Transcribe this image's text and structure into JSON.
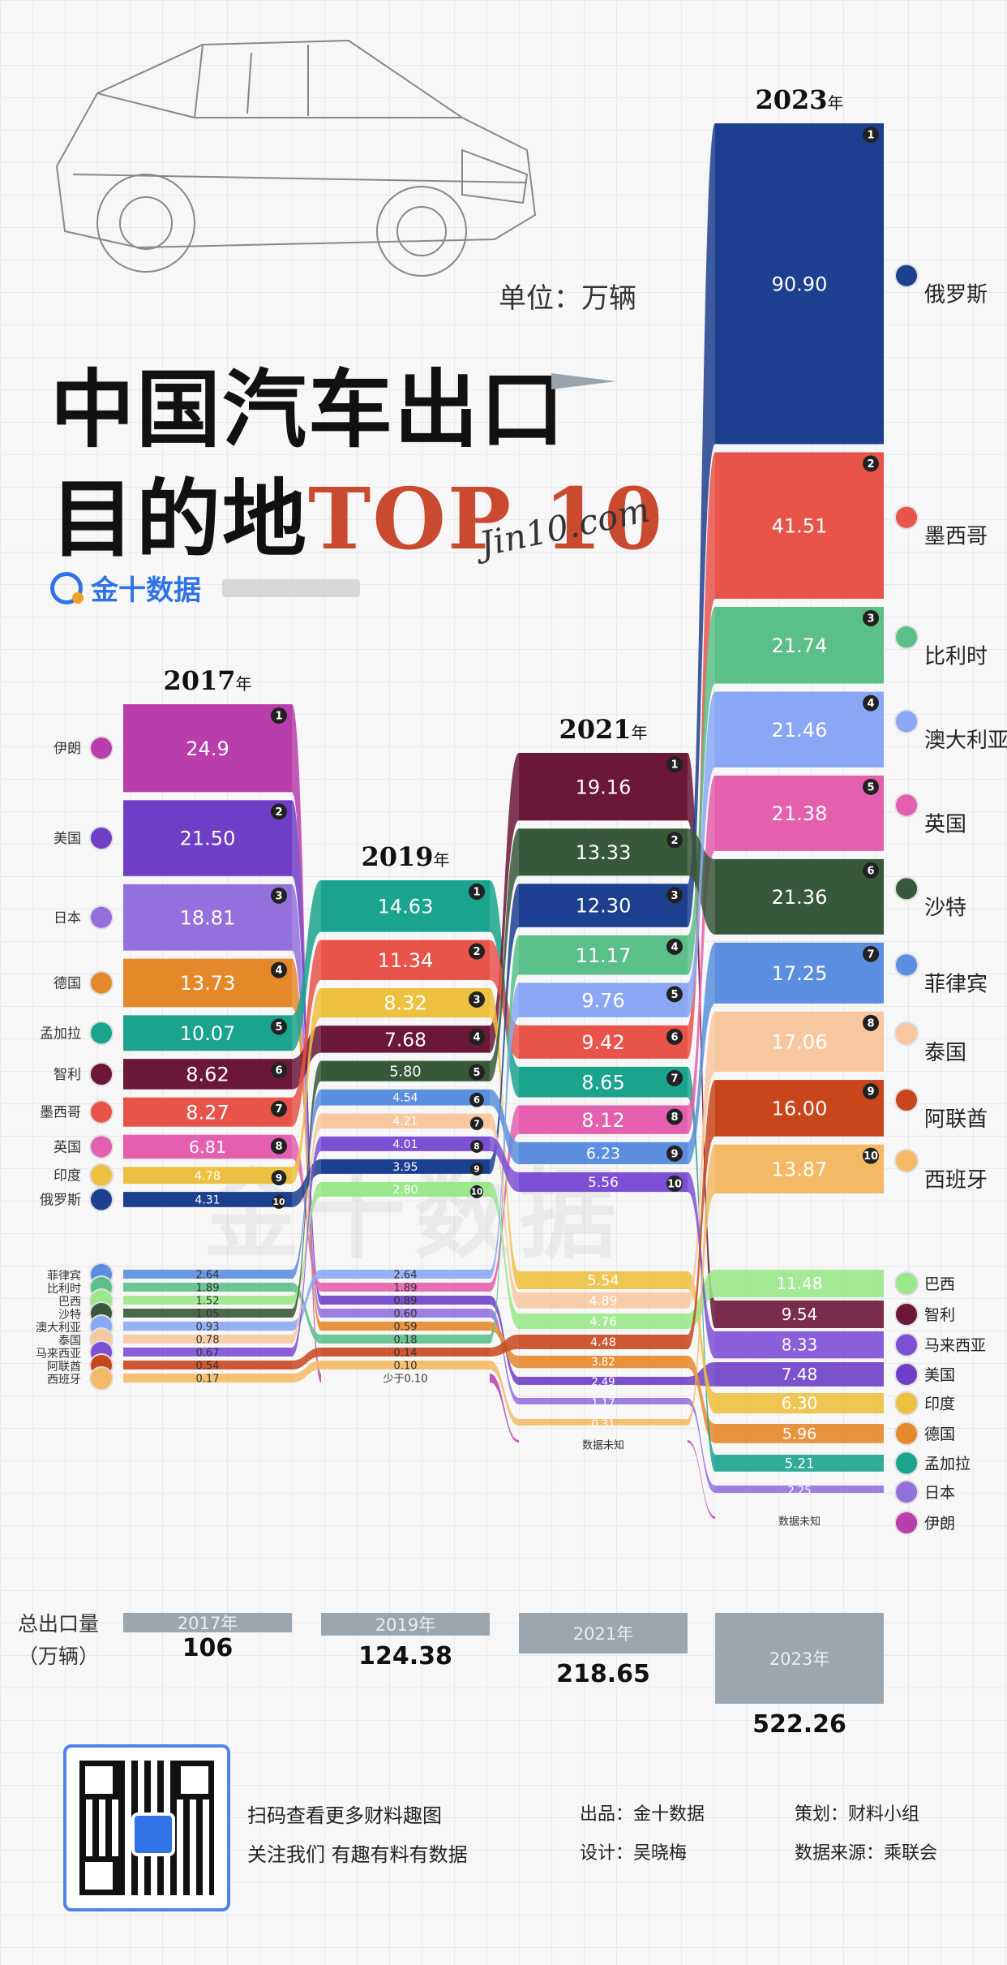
{
  "header": {
    "unit": "单位：万辆",
    "title_line1": "中国汽车出口",
    "title_line2_prefix": "目的地",
    "title_line2_accent": "TOP 10",
    "brand": "金十数据",
    "signature": "Jin10.com"
  },
  "watermark": "金十数据",
  "totals": {
    "label_line1": "总出口量",
    "label_line2": "（万辆）",
    "items": [
      {
        "year": "2017年",
        "value": "106"
      },
      {
        "year": "2019年",
        "value": "124.38"
      },
      {
        "year": "2021年",
        "value": "218.65"
      },
      {
        "year": "2023年",
        "value": "522.26"
      }
    ]
  },
  "footer": {
    "qr_line1": "扫码查看更多财料趣图",
    "qr_line2": "关注我们 有趣有料有数据",
    "producer": "出品：金十数据",
    "designer": "设计：吴晓梅",
    "planner": "策划：财料小组",
    "source": "数据来源：乘联会"
  },
  "country_colors": {
    "伊朗": "#b93dab",
    "美国": "#6e3fc6",
    "日本": "#9470dd",
    "德国": "#e5882a",
    "孟加拉": "#1aa38d",
    "智利": "#6b1737",
    "墨西哥": "#e8534a",
    "英国": "#e45fae",
    "印度": "#eec040",
    "俄罗斯": "#1d3f8f",
    "菲律宾": "#5b8ede",
    "比利时": "#5bbf88",
    "巴西": "#9ae88a",
    "沙特": "#38583a",
    "澳大利亚": "#8aa7f5",
    "泰国": "#f7c8a0",
    "马来西亚": "#7c4fd5",
    "阿联酋": "#c9461d",
    "西班牙": "#f3b964"
  },
  "chart_data": {
    "type": "bar",
    "title": "中国汽车出口目的地TOP 10",
    "unit": "万辆",
    "years": [
      {
        "year": "2017",
        "year_suffix": "年",
        "top10": [
          {
            "rank": "1",
            "country": "伊朗",
            "value": 24.9,
            "label": "24.9"
          },
          {
            "rank": "2",
            "country": "美国",
            "value": 21.5,
            "label": "21.50"
          },
          {
            "rank": "3",
            "country": "日本",
            "value": 18.81,
            "label": "18.81"
          },
          {
            "rank": "4",
            "country": "德国",
            "value": 13.73,
            "label": "13.73"
          },
          {
            "rank": "5",
            "country": "孟加拉",
            "value": 10.07,
            "label": "10.07"
          },
          {
            "rank": "6",
            "country": "智利",
            "value": 8.62,
            "label": "8.62"
          },
          {
            "rank": "7",
            "country": "墨西哥",
            "value": 8.27,
            "label": "8.27"
          },
          {
            "rank": "8",
            "country": "英国",
            "value": 6.81,
            "label": "6.81"
          },
          {
            "rank": "9",
            "country": "印度",
            "value": 4.78,
            "label": "4.78"
          },
          {
            "rank": "10",
            "country": "俄罗斯",
            "value": 4.31,
            "label": "4.31"
          }
        ],
        "others": [
          {
            "country": "菲律宾",
            "value": 2.64,
            "label": "2.64"
          },
          {
            "country": "比利时",
            "value": 1.89,
            "label": "1.89"
          },
          {
            "country": "巴西",
            "value": 1.52,
            "label": "1.52"
          },
          {
            "country": "沙特",
            "value": 1.05,
            "label": "1.05"
          },
          {
            "country": "澳大利亚",
            "value": 0.93,
            "label": "0.93"
          },
          {
            "country": "泰国",
            "value": 0.78,
            "label": "0.78"
          },
          {
            "country": "马来西亚",
            "value": 0.67,
            "label": "0.67"
          },
          {
            "country": "阿联酋",
            "value": 0.54,
            "label": "0.54"
          },
          {
            "country": "西班牙",
            "value": 0.17,
            "label": "0.17"
          }
        ]
      },
      {
        "year": "2019",
        "year_suffix": "年",
        "top10": [
          {
            "rank": "1",
            "country": "孟加拉",
            "value": 14.63,
            "label": "14.63"
          },
          {
            "rank": "2",
            "country": "墨西哥",
            "value": 11.34,
            "label": "11.34"
          },
          {
            "rank": "3",
            "country": "印度",
            "value": 8.32,
            "label": "8.32"
          },
          {
            "rank": "4",
            "country": "智利",
            "value": 7.68,
            "label": "7.68"
          },
          {
            "rank": "5",
            "country": "沙特",
            "value": 5.8,
            "label": "5.80"
          },
          {
            "rank": "6",
            "country": "菲律宾",
            "value": 4.54,
            "label": "4.54"
          },
          {
            "rank": "7",
            "country": "泰国",
            "value": 4.21,
            "label": "4.21"
          },
          {
            "rank": "8",
            "country": "马来西亚",
            "value": 4.01,
            "label": "4.01"
          },
          {
            "rank": "9",
            "country": "俄罗斯",
            "value": 3.95,
            "label": "3.95"
          },
          {
            "rank": "10",
            "country": "巴西",
            "value": 2.8,
            "label": "2.80"
          }
        ],
        "others": [
          {
            "country": "澳大利亚",
            "value": 2.64,
            "label": "2.64"
          },
          {
            "country": "英国",
            "value": 1.89,
            "label": "1.89"
          },
          {
            "country": "美国",
            "value": 0.89,
            "label": "0.89"
          },
          {
            "country": "日本",
            "value": 0.6,
            "label": "0.60"
          },
          {
            "country": "德国",
            "value": 0.59,
            "label": "0.59"
          },
          {
            "country": "比利时",
            "value": 0.18,
            "label": "0.18"
          },
          {
            "country": "阿联酋",
            "value": 0.14,
            "label": "0.14"
          },
          {
            "country": "西班牙",
            "value": 0.1,
            "label": "0.10"
          },
          {
            "country": "伊朗",
            "value": null,
            "label": "少于0.10"
          }
        ]
      },
      {
        "year": "2021",
        "year_suffix": "年",
        "top10": [
          {
            "rank": "1",
            "country": "智利",
            "value": 19.16,
            "label": "19.16"
          },
          {
            "rank": "2",
            "country": "沙特",
            "value": 13.33,
            "label": "13.33"
          },
          {
            "rank": "3",
            "country": "俄罗斯",
            "value": 12.3,
            "label": "12.30"
          },
          {
            "rank": "4",
            "country": "比利时",
            "value": 11.17,
            "label": "11.17"
          },
          {
            "rank": "5",
            "country": "澳大利亚",
            "value": 9.76,
            "label": "9.76"
          },
          {
            "rank": "6",
            "country": "墨西哥",
            "value": 9.42,
            "label": "9.42"
          },
          {
            "rank": "7",
            "country": "孟加拉",
            "value": 8.65,
            "label": "8.65"
          },
          {
            "rank": "8",
            "country": "英国",
            "value": 8.12,
            "label": "8.12"
          },
          {
            "rank": "9",
            "country": "菲律宾",
            "value": 6.23,
            "label": "6.23"
          },
          {
            "rank": "10",
            "country": "马来西亚",
            "value": 5.56,
            "label": "5.56"
          }
        ],
        "others": [
          {
            "country": "印度",
            "value": 5.54,
            "label": "5.54"
          },
          {
            "country": "泰国",
            "value": 4.89,
            "label": "4.89"
          },
          {
            "country": "巴西",
            "value": 4.76,
            "label": "4.76"
          },
          {
            "country": "阿联酋",
            "value": 4.48,
            "label": "4.48"
          },
          {
            "country": "德国",
            "value": 3.82,
            "label": "3.82"
          },
          {
            "country": "美国",
            "value": 2.49,
            "label": "2.49"
          },
          {
            "country": "日本",
            "value": 1.17,
            "label": "1.17"
          },
          {
            "country": "西班牙",
            "value": 0.31,
            "label": "0.31"
          },
          {
            "country": "伊朗",
            "value": null,
            "label": "数据未知"
          }
        ]
      },
      {
        "year": "2023",
        "year_suffix": "年",
        "top10": [
          {
            "rank": "1",
            "country": "俄罗斯",
            "value": 90.9,
            "label": "90.90"
          },
          {
            "rank": "2",
            "country": "墨西哥",
            "value": 41.51,
            "label": "41.51"
          },
          {
            "rank": "3",
            "country": "比利时",
            "value": 21.74,
            "label": "21.74"
          },
          {
            "rank": "4",
            "country": "澳大利亚",
            "value": 21.46,
            "label": "21.46"
          },
          {
            "rank": "5",
            "country": "英国",
            "value": 21.38,
            "label": "21.38"
          },
          {
            "rank": "6",
            "country": "沙特",
            "value": 21.36,
            "label": "21.36"
          },
          {
            "rank": "7",
            "country": "菲律宾",
            "value": 17.25,
            "label": "17.25"
          },
          {
            "rank": "8",
            "country": "泰国",
            "value": 17.06,
            "label": "17.06"
          },
          {
            "rank": "9",
            "country": "阿联酋",
            "value": 16.0,
            "label": "16.00"
          },
          {
            "rank": "10",
            "country": "西班牙",
            "value": 13.87,
            "label": "13.87"
          }
        ],
        "others": [
          {
            "country": "巴西",
            "value": 11.48,
            "label": "11.48"
          },
          {
            "country": "智利",
            "value": 9.54,
            "label": "9.54"
          },
          {
            "country": "马来西亚",
            "value": 8.33,
            "label": "8.33"
          },
          {
            "country": "美国",
            "value": 7.48,
            "label": "7.48"
          },
          {
            "country": "印度",
            "value": 6.3,
            "label": "6.30"
          },
          {
            "country": "德国",
            "value": 5.96,
            "label": "5.96"
          },
          {
            "country": "孟加拉",
            "value": 5.21,
            "label": "5.21"
          },
          {
            "country": "日本",
            "value": 2.25,
            "label": "2.25"
          },
          {
            "country": "伊朗",
            "value": null,
            "label": "数据未知"
          }
        ]
      }
    ]
  }
}
